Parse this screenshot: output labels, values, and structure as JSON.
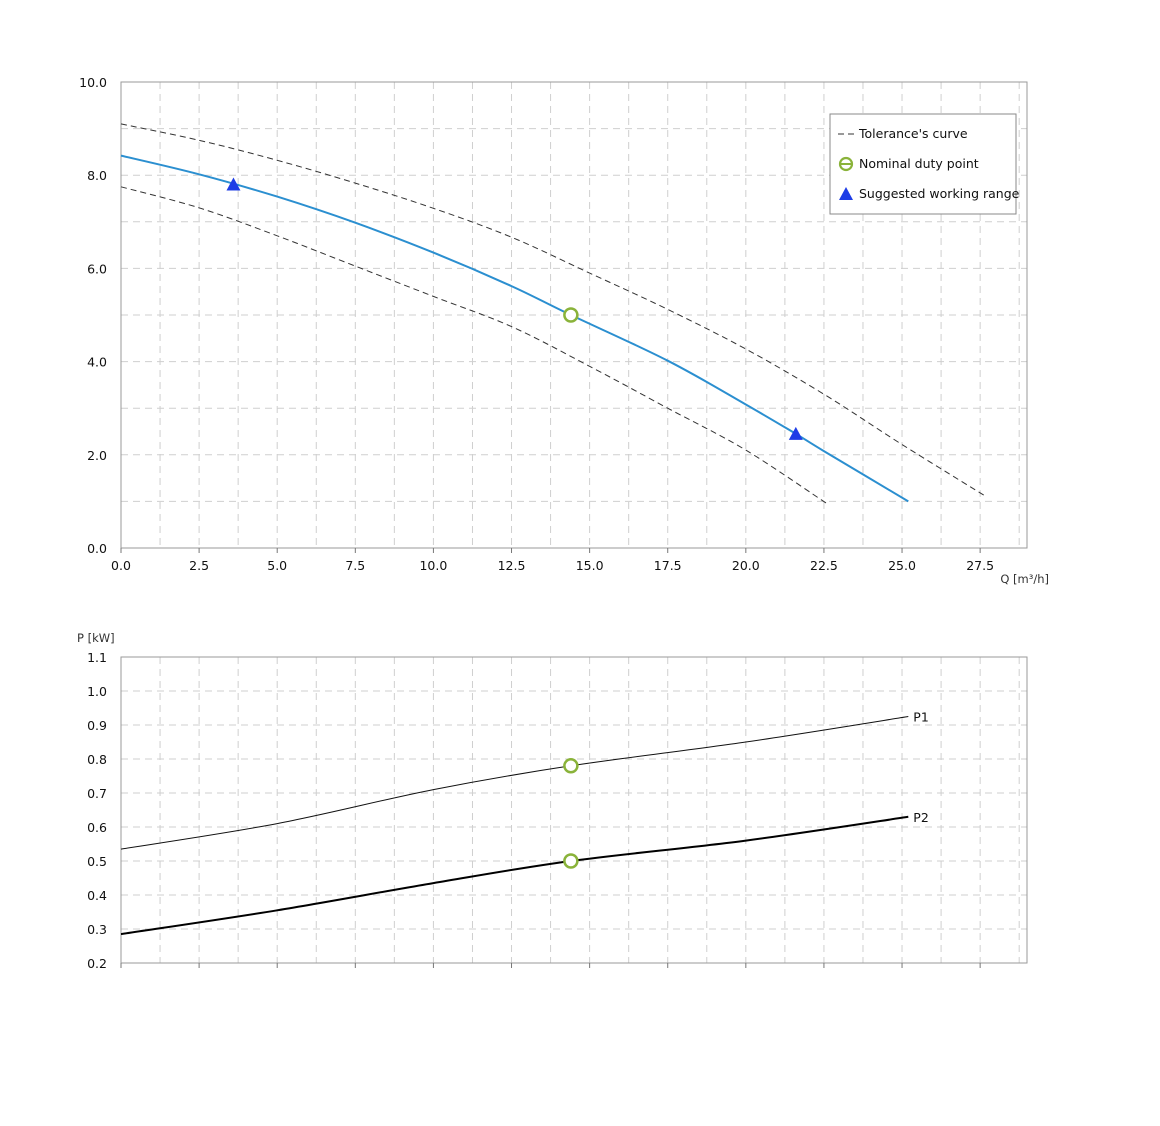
{
  "chart_data": [
    {
      "type": "line",
      "xlabel": "Q [m³/h]",
      "ylabel": "",
      "xlim": [
        0,
        29
      ],
      "ylim": [
        0,
        10
      ],
      "x_ticks": [
        "0.0",
        "2.5",
        "5.0",
        "7.5",
        "10.0",
        "12.5",
        "15.0",
        "17.5",
        "20.0",
        "22.5",
        "25.0",
        "27.5"
      ],
      "y_ticks": [
        "0.0",
        "2.0",
        "4.0",
        "6.0",
        "8.0",
        "10.0"
      ],
      "grid": true,
      "legend_position": "top-right",
      "legend": [
        {
          "label": "Tolerance's curve",
          "marker": "dash"
        },
        {
          "label": "Nominal duty point",
          "marker": "circle"
        },
        {
          "label": "Suggested working range",
          "marker": "triangle"
        }
      ],
      "series": [
        {
          "role": "pump-curve",
          "color": "#2b8fd0",
          "x": [
            0,
            2.5,
            5,
            7.5,
            10,
            12.5,
            14.4,
            17.5,
            20,
            21.6,
            22.5,
            25.2
          ],
          "y": [
            8.42,
            8.02,
            7.54,
            6.98,
            6.34,
            5.62,
            5.0,
            4.02,
            3.08,
            2.45,
            2.08,
            1.0
          ]
        },
        {
          "role": "tolerance-upper",
          "color": "#333333",
          "dashed": true,
          "x": [
            0,
            2.5,
            5,
            7.5,
            10,
            12.5,
            15,
            17.5,
            20,
            22.5,
            25,
            27.7
          ],
          "y": [
            9.1,
            8.75,
            8.32,
            7.83,
            7.29,
            6.67,
            5.9,
            5.12,
            4.27,
            3.3,
            2.22,
            1.1
          ]
        },
        {
          "role": "tolerance-lower",
          "color": "#333333",
          "dashed": true,
          "x": [
            0,
            2.5,
            5,
            7.5,
            10,
            12.5,
            15,
            17.5,
            20,
            22.6
          ],
          "y": [
            7.75,
            7.3,
            6.7,
            6.05,
            5.4,
            4.75,
            3.9,
            3.0,
            2.1,
            0.95
          ]
        }
      ],
      "points": [
        {
          "type": "nominal-duty-point",
          "x": 14.4,
          "y": 5.0,
          "color": "#8ab33a"
        },
        {
          "type": "working-range",
          "x": 3.6,
          "y": 7.8,
          "color": "#1e3de6"
        },
        {
          "type": "working-range",
          "x": 21.6,
          "y": 2.45,
          "color": "#1e3de6"
        }
      ]
    },
    {
      "type": "line",
      "xlabel": "",
      "ylabel": "P [kW]",
      "xlim": [
        0,
        29
      ],
      "ylim": [
        0.2,
        1.1
      ],
      "y_ticks": [
        "0.2",
        "0.3",
        "0.4",
        "0.5",
        "0.6",
        "0.7",
        "0.8",
        "0.9",
        "1.0",
        "1.1"
      ],
      "grid": true,
      "series": [
        {
          "name": "P1",
          "color": "#111111",
          "x": [
            0,
            5,
            10,
            14.4,
            20,
            25.2
          ],
          "y": [
            0.535,
            0.61,
            0.71,
            0.78,
            0.85,
            0.925
          ]
        },
        {
          "name": "P2",
          "color": "#000000",
          "x": [
            0,
            5,
            10,
            14.4,
            20,
            25.2
          ],
          "y": [
            0.285,
            0.355,
            0.435,
            0.5,
            0.56,
            0.63
          ]
        }
      ],
      "points": [
        {
          "type": "nominal-duty-point",
          "x": 14.4,
          "y": 0.78,
          "color": "#8ab33a"
        },
        {
          "type": "nominal-duty-point",
          "x": 14.4,
          "y": 0.5,
          "color": "#8ab33a"
        }
      ]
    }
  ]
}
